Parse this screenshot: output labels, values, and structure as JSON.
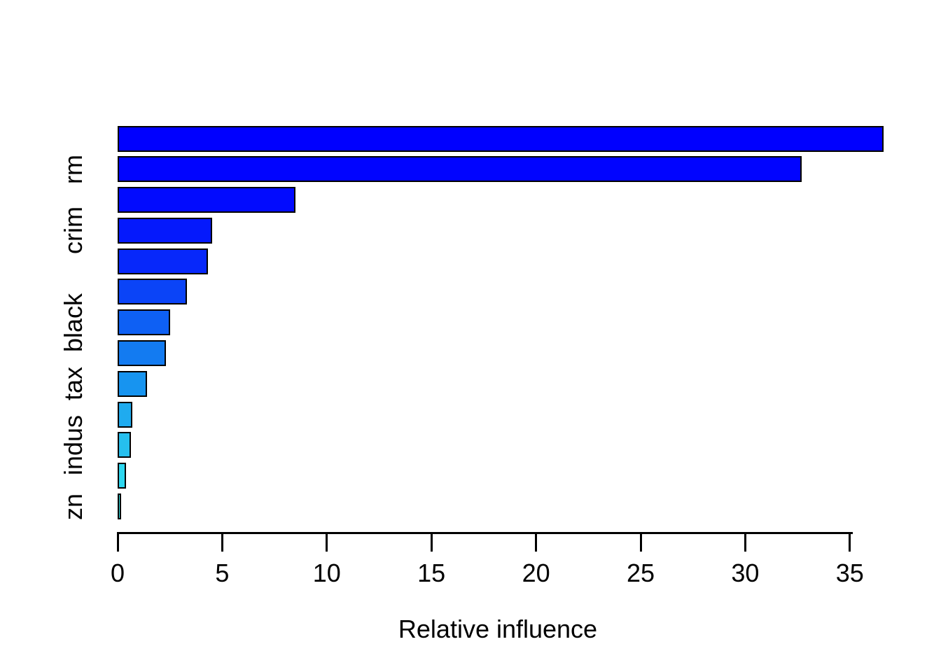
{
  "figure": {
    "background": "#FFFFFF",
    "text_color": "#000000"
  },
  "chart_data": {
    "type": "bar",
    "orientation": "horizontal",
    "title": "",
    "xlabel": "Relative influence",
    "ylabel": "",
    "xlim": [
      0,
      35
    ],
    "x_ticks": [
      "0",
      "5",
      "10",
      "15",
      "20",
      "25",
      "30",
      "35"
    ],
    "grid": false,
    "legend": "none",
    "axis_color": "#000000",
    "bar_border_color": "#000000",
    "bars": [
      {
        "label": "",
        "value": 36.6,
        "color": "#0000FF"
      },
      {
        "label": "rm",
        "value": 32.7,
        "color": "#0104FF"
      },
      {
        "label": "",
        "value": 8.5,
        "color": "#020BFE"
      },
      {
        "label": "crim",
        "value": 4.5,
        "color": "#0519FC"
      },
      {
        "label": "",
        "value": 4.3,
        "color": "#0728FA"
      },
      {
        "label": "",
        "value": 3.3,
        "color": "#0B44F7"
      },
      {
        "label": "black",
        "value": 2.5,
        "color": "#0E60F4"
      },
      {
        "label": "",
        "value": 2.3,
        "color": "#137BF1"
      },
      {
        "label": "tax",
        "value": 1.4,
        "color": "#1794F0"
      },
      {
        "label": "",
        "value": 0.7,
        "color": "#1FABEF"
      },
      {
        "label": "indus",
        "value": 0.63,
        "color": "#26BFEE"
      },
      {
        "label": "",
        "value": 0.41,
        "color": "#2DD7F0"
      },
      {
        "label": "zn",
        "value": 0.18,
        "color": "#34E1E3"
      }
    ]
  }
}
